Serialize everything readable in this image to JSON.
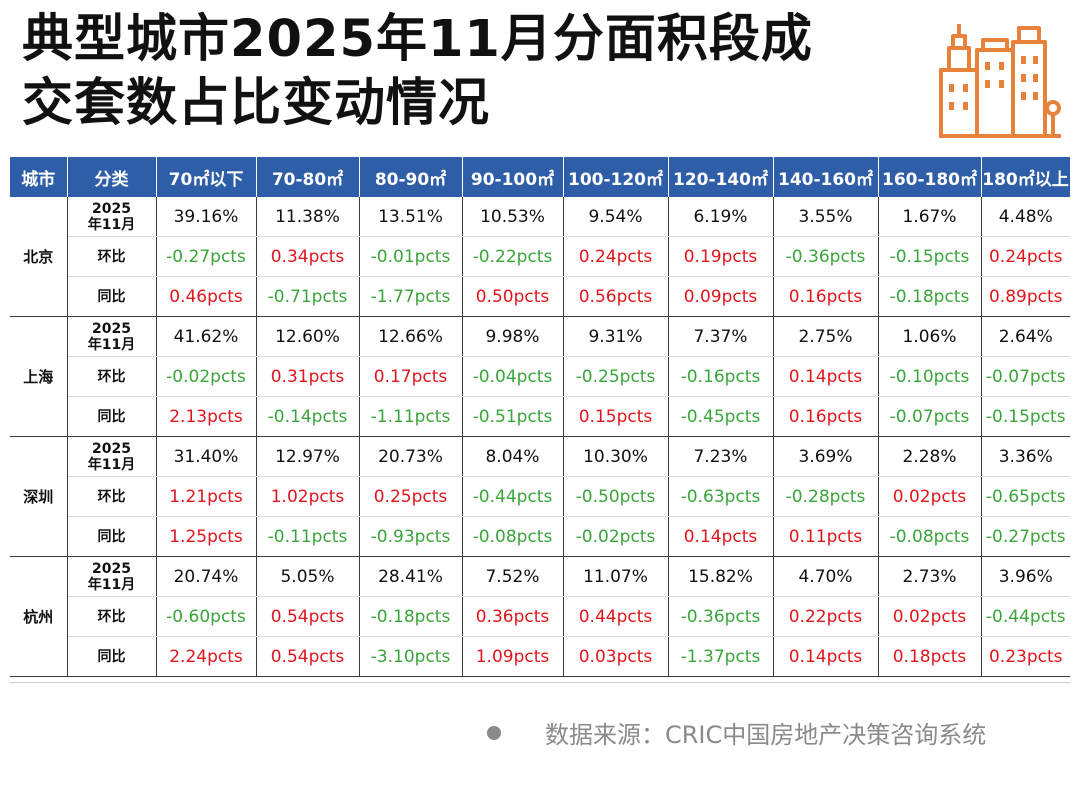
{
  "title": {
    "line1": "典型城市2025年11月分面积段成",
    "line2": "交套数占比变动情况"
  },
  "logo": {
    "icon": "city-buildings-icon",
    "color": "#e8823a"
  },
  "colors": {
    "header_bg": "#2f5ea8",
    "up": "#e0161c",
    "down": "#3aa53a"
  },
  "table": {
    "headers": [
      "城市",
      "分类",
      "70㎡以下",
      "70-80㎡",
      "80-90㎡",
      "90-100㎡",
      "100-120㎡",
      "120-140㎡",
      "140-160㎡",
      "160-180㎡",
      "180㎡以上"
    ],
    "row_labels": {
      "current": "2025\n年11月",
      "mom": "环比",
      "yoy": "同比"
    },
    "cities": [
      {
        "name": "北京",
        "current": [
          "39.16%",
          "11.38%",
          "13.51%",
          "10.53%",
          "9.54%",
          "6.19%",
          "3.55%",
          "1.67%",
          "4.48%"
        ],
        "mom": [
          "-0.27pcts",
          "0.34pcts",
          "-0.01pcts",
          "-0.22pcts",
          "0.24pcts",
          "0.19pcts",
          "-0.36pcts",
          "-0.15pcts",
          "0.24pcts"
        ],
        "yoy": [
          "0.46pcts",
          "-0.71pcts",
          "-1.77pcts",
          "0.50pcts",
          "0.56pcts",
          "0.09pcts",
          "0.16pcts",
          "-0.18pcts",
          "0.89pcts"
        ]
      },
      {
        "name": "上海",
        "current": [
          "41.62%",
          "12.60%",
          "12.66%",
          "9.98%",
          "9.31%",
          "7.37%",
          "2.75%",
          "1.06%",
          "2.64%"
        ],
        "mom": [
          "-0.02pcts",
          "0.31pcts",
          "0.17pcts",
          "-0.04pcts",
          "-0.25pcts",
          "-0.16pcts",
          "0.14pcts",
          "-0.10pcts",
          "-0.07pcts"
        ],
        "yoy": [
          "2.13pcts",
          "-0.14pcts",
          "-1.11pcts",
          "-0.51pcts",
          "0.15pcts",
          "-0.45pcts",
          "0.16pcts",
          "-0.07pcts",
          "-0.15pcts"
        ]
      },
      {
        "name": "深圳",
        "current": [
          "31.40%",
          "12.97%",
          "20.73%",
          "8.04%",
          "10.30%",
          "7.23%",
          "3.69%",
          "2.28%",
          "3.36%"
        ],
        "mom": [
          "1.21pcts",
          "1.02pcts",
          "0.25pcts",
          "-0.44pcts",
          "-0.50pcts",
          "-0.63pcts",
          "-0.28pcts",
          "0.02pcts",
          "-0.65pcts"
        ],
        "yoy": [
          "1.25pcts",
          "-0.11pcts",
          "-0.93pcts",
          "-0.08pcts",
          "-0.02pcts",
          "0.14pcts",
          "0.11pcts",
          "-0.08pcts",
          "-0.27pcts"
        ]
      },
      {
        "name": "杭州",
        "current": [
          "20.74%",
          "5.05%",
          "28.41%",
          "7.52%",
          "11.07%",
          "15.82%",
          "4.70%",
          "2.73%",
          "3.96%"
        ],
        "mom": [
          "-0.60pcts",
          "0.54pcts",
          "-0.18pcts",
          "0.36pcts",
          "0.44pcts",
          "-0.36pcts",
          "0.22pcts",
          "0.02pcts",
          "-0.44pcts"
        ],
        "yoy": [
          "2.24pcts",
          "0.54pcts",
          "-3.10pcts",
          "1.09pcts",
          "0.03pcts",
          "-1.37pcts",
          "0.14pcts",
          "0.18pcts",
          "0.23pcts"
        ]
      }
    ]
  },
  "footer": {
    "source": "数据来源：CRIC中国房地产决策咨询系统"
  }
}
